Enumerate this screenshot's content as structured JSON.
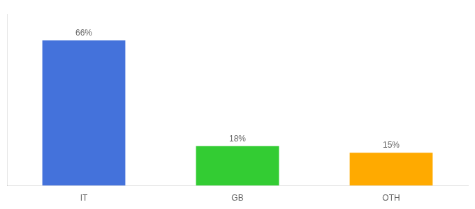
{
  "chart_data": {
    "type": "bar",
    "categories": [
      "IT",
      "GB",
      "OTH"
    ],
    "values": [
      66,
      18,
      15
    ],
    "value_labels": [
      "66%",
      "18%",
      "15%"
    ],
    "colors": [
      "#4472db",
      "#33cc33",
      "#ffaa00"
    ],
    "ylim": [
      0,
      78
    ],
    "grid": false,
    "data_labels": true,
    "tick_labels": "x"
  }
}
